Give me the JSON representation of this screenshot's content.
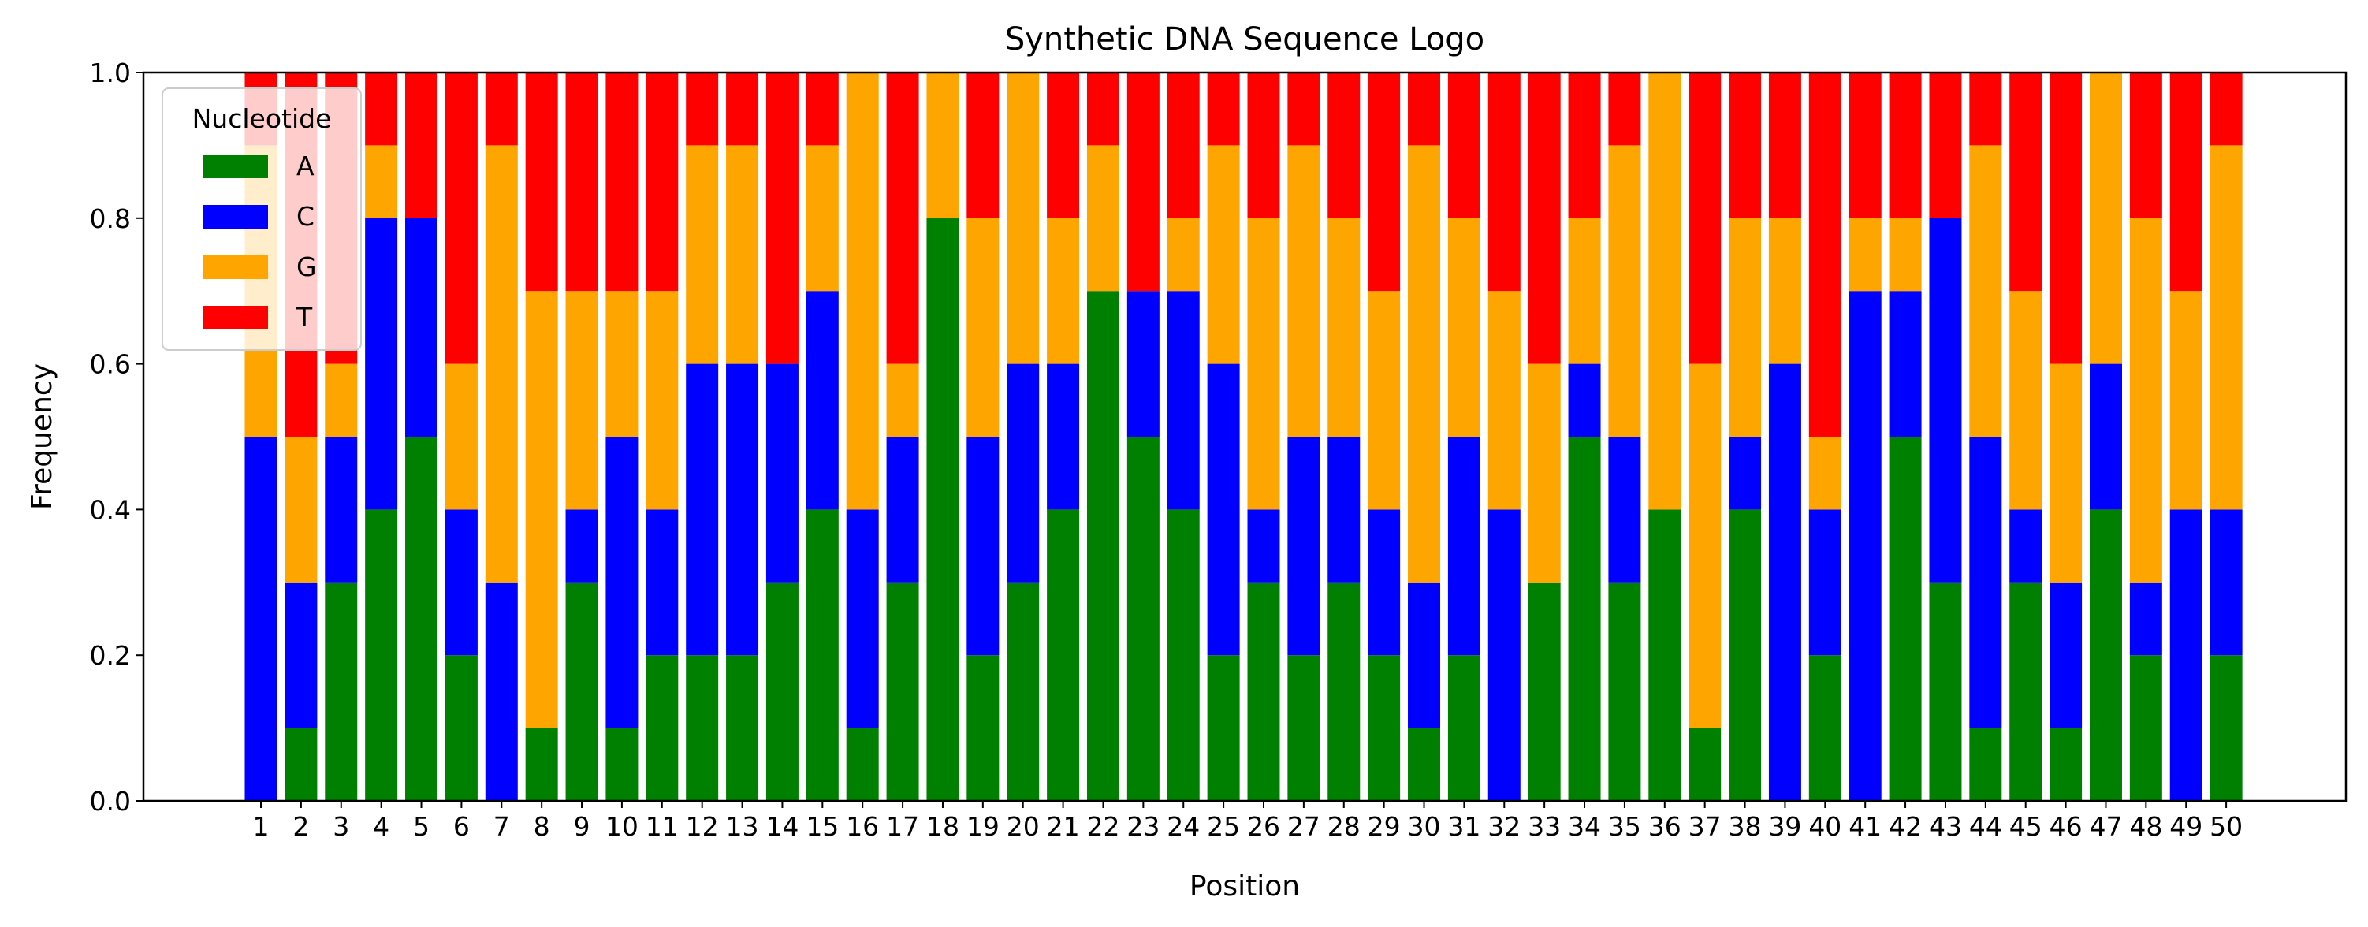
{
  "chart_data": {
    "type": "bar",
    "stacked": true,
    "title": "Synthetic DNA Sequence Logo",
    "xlabel": "Position",
    "ylabel": "Frequency",
    "ylim": [
      0,
      1.0
    ],
    "yticks": [
      "0.0",
      "0.2",
      "0.4",
      "0.6",
      "0.8",
      "1.0"
    ],
    "categories": [
      "1",
      "2",
      "3",
      "4",
      "5",
      "6",
      "7",
      "8",
      "9",
      "10",
      "11",
      "12",
      "13",
      "14",
      "15",
      "16",
      "17",
      "18",
      "19",
      "20",
      "21",
      "22",
      "23",
      "24",
      "25",
      "26",
      "27",
      "28",
      "29",
      "30",
      "31",
      "32",
      "33",
      "34",
      "35",
      "36",
      "37",
      "38",
      "39",
      "40",
      "41",
      "42",
      "43",
      "44",
      "45",
      "46",
      "47",
      "48",
      "49",
      "50"
    ],
    "legend": {
      "title": "Nucleotide",
      "placement": "upper left"
    },
    "grid": false,
    "series": [
      {
        "name": "A",
        "color": "#008000",
        "values": [
          0.0,
          0.1,
          0.3,
          0.4,
          0.5,
          0.2,
          0.0,
          0.1,
          0.3,
          0.1,
          0.2,
          0.2,
          0.2,
          0.3,
          0.4,
          0.1,
          0.3,
          0.8,
          0.2,
          0.3,
          0.4,
          0.7,
          0.5,
          0.4,
          0.2,
          0.3,
          0.2,
          0.3,
          0.2,
          0.1,
          0.2,
          0.0,
          0.3,
          0.5,
          0.3,
          0.4,
          0.1,
          0.4,
          0.0,
          0.2,
          0.0,
          0.5,
          0.3,
          0.1,
          0.3,
          0.1,
          0.4,
          0.2,
          0.0,
          0.2
        ]
      },
      {
        "name": "C",
        "color": "#0000ff",
        "values": [
          0.5,
          0.2,
          0.2,
          0.4,
          0.3,
          0.2,
          0.3,
          0.0,
          0.1,
          0.4,
          0.2,
          0.4,
          0.4,
          0.3,
          0.3,
          0.3,
          0.2,
          0.0,
          0.3,
          0.3,
          0.2,
          0.0,
          0.2,
          0.3,
          0.4,
          0.1,
          0.3,
          0.2,
          0.2,
          0.2,
          0.3,
          0.4,
          0.0,
          0.1,
          0.2,
          0.0,
          0.0,
          0.1,
          0.6,
          0.2,
          0.7,
          0.2,
          0.5,
          0.4,
          0.1,
          0.2,
          0.2,
          0.1,
          0.4,
          0.2
        ]
      },
      {
        "name": "G",
        "color": "#ffa500",
        "values": [
          0.4,
          0.2,
          0.1,
          0.1,
          0.0,
          0.2,
          0.6,
          0.6,
          0.3,
          0.2,
          0.3,
          0.3,
          0.3,
          0.0,
          0.2,
          0.6,
          0.1,
          0.2,
          0.3,
          0.4,
          0.2,
          0.2,
          0.0,
          0.1,
          0.3,
          0.4,
          0.4,
          0.3,
          0.3,
          0.6,
          0.3,
          0.3,
          0.3,
          0.2,
          0.4,
          0.6,
          0.5,
          0.3,
          0.2,
          0.1,
          0.1,
          0.1,
          0.0,
          0.4,
          0.3,
          0.3,
          0.4,
          0.5,
          0.3,
          0.5
        ]
      },
      {
        "name": "T",
        "color": "#ff0000",
        "values": [
          0.1,
          0.5,
          0.4,
          0.1,
          0.2,
          0.4,
          0.1,
          0.3,
          0.3,
          0.3,
          0.3,
          0.1,
          0.1,
          0.4,
          0.1,
          0.0,
          0.4,
          0.0,
          0.2,
          0.0,
          0.2,
          0.1,
          0.3,
          0.2,
          0.1,
          0.2,
          0.1,
          0.2,
          0.3,
          0.1,
          0.2,
          0.3,
          0.4,
          0.2,
          0.1,
          0.0,
          0.4,
          0.2,
          0.2,
          0.5,
          0.2,
          0.2,
          0.2,
          0.1,
          0.3,
          0.4,
          0.0,
          0.2,
          0.3,
          0.1
        ]
      }
    ]
  }
}
